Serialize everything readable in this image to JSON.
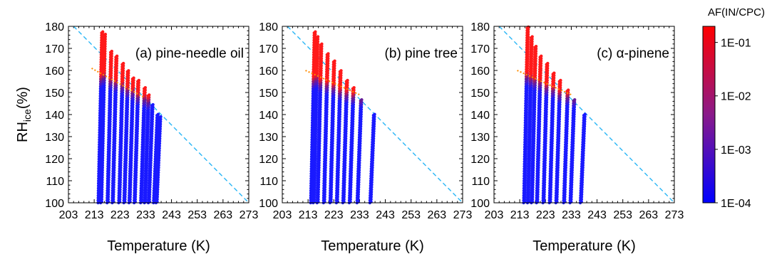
{
  "chart_data": {
    "type": "scatter",
    "shared": {
      "xlabel": "Temperature (K)",
      "ylabel_main": "RH",
      "ylabel_sub": "ice",
      "ylabel_unit": "(%)",
      "xlim": [
        203,
        273
      ],
      "ylim": [
        100,
        180
      ],
      "x_ticks": [
        203,
        213,
        223,
        233,
        243,
        253,
        263,
        273
      ],
      "y_ticks": [
        100,
        110,
        120,
        130,
        140,
        150,
        160,
        170,
        180
      ],
      "x_tick_labels": [
        "203",
        "213",
        "223",
        "233",
        "243",
        "253",
        "263",
        "273"
      ],
      "y_tick_labels": [
        "100",
        "110",
        "120",
        "130",
        "140",
        "150",
        "160",
        "170",
        "180"
      ],
      "marker_color_low": "#1a1aff",
      "marker_color_high": "#ff1a1a",
      "water_saturation_line": {
        "style": "dashed",
        "color": "#29b6f6",
        "points": [
          [
            205,
            180
          ],
          [
            273,
            100
          ]
        ]
      },
      "trend_line_color": "#ff8c00"
    },
    "colorbar": {
      "title": "AF(IN/CPC)",
      "scale": "log",
      "ticks": [
        "1E-01",
        "1E-02",
        "1E-03",
        "1E-04"
      ],
      "tick_values": [
        0.1,
        0.01,
        0.001,
        0.0001
      ],
      "range": [
        0.0001,
        0.2
      ],
      "colors": [
        "#ff0000",
        "#8a1a8a",
        "#0000ff"
      ]
    },
    "panels": [
      {
        "label": "(a) pine-needle oil",
        "trend_line": [
          [
            212,
            161
          ],
          [
            232,
            148
          ]
        ],
        "scans": [
          {
            "T": 214.5,
            "rh_top": 178,
            "rh_red": 155
          },
          {
            "T": 215.5,
            "rh_top": 176,
            "rh_red": 156
          },
          {
            "T": 218,
            "rh_top": 169,
            "rh_red": 154
          },
          {
            "T": 220,
            "rh_top": 166,
            "rh_red": 153
          },
          {
            "T": 222.5,
            "rh_top": 163,
            "rh_red": 152
          },
          {
            "T": 224.5,
            "rh_top": 160,
            "rh_red": 150
          },
          {
            "T": 226.5,
            "rh_top": 157,
            "rh_red": 149
          },
          {
            "T": 228.5,
            "rh_top": 155,
            "rh_red": 147
          },
          {
            "T": 231,
            "rh_top": 152,
            "rh_red": 146
          },
          {
            "T": 232.5,
            "rh_top": 149,
            "rh_red": 145
          },
          {
            "T": 234,
            "rh_top": 145,
            "rh_red": null
          },
          {
            "T": 236,
            "rh_top": 140,
            "rh_red": null
          },
          {
            "T": 237,
            "rh_top": 139,
            "rh_red": null
          }
        ]
      },
      {
        "label": "(b) pine tree",
        "trend_line": [
          [
            212,
            160
          ],
          [
            233,
            149
          ]
        ],
        "scans": [
          {
            "T": 214,
            "rh_top": 178,
            "rh_red": 154
          },
          {
            "T": 215,
            "rh_top": 175,
            "rh_red": 155
          },
          {
            "T": 216.5,
            "rh_top": 172,
            "rh_red": 153
          },
          {
            "T": 219,
            "rh_top": 168,
            "rh_red": 152
          },
          {
            "T": 221.5,
            "rh_top": 164,
            "rh_red": 151
          },
          {
            "T": 224,
            "rh_top": 160,
            "rh_red": 149
          },
          {
            "T": 226.5,
            "rh_top": 156,
            "rh_red": 148
          },
          {
            "T": 229,
            "rh_top": 152,
            "rh_red": 147
          },
          {
            "T": 232,
            "rh_top": 147,
            "rh_red": 146
          },
          {
            "T": 237,
            "rh_top": 140,
            "rh_red": null
          }
        ]
      },
      {
        "label": "(c) α-pinene",
        "trend_line": [
          [
            212,
            160
          ],
          [
            233,
            149
          ]
        ],
        "scans": [
          {
            "T": 214.5,
            "rh_top": 180,
            "rh_red": 156
          },
          {
            "T": 216,
            "rh_top": 175,
            "rh_red": 155
          },
          {
            "T": 217.5,
            "rh_top": 171,
            "rh_red": 154
          },
          {
            "T": 219.5,
            "rh_top": 167,
            "rh_red": 153
          },
          {
            "T": 222,
            "rh_top": 163,
            "rh_red": 151
          },
          {
            "T": 224.5,
            "rh_top": 159,
            "rh_red": 150
          },
          {
            "T": 227,
            "rh_top": 155,
            "rh_red": 148
          },
          {
            "T": 230,
            "rh_top": 151,
            "rh_red": 147
          },
          {
            "T": 232.5,
            "rh_top": 147,
            "rh_red": 146
          },
          {
            "T": 236.5,
            "rh_top": 140,
            "rh_red": null
          }
        ]
      }
    ]
  }
}
